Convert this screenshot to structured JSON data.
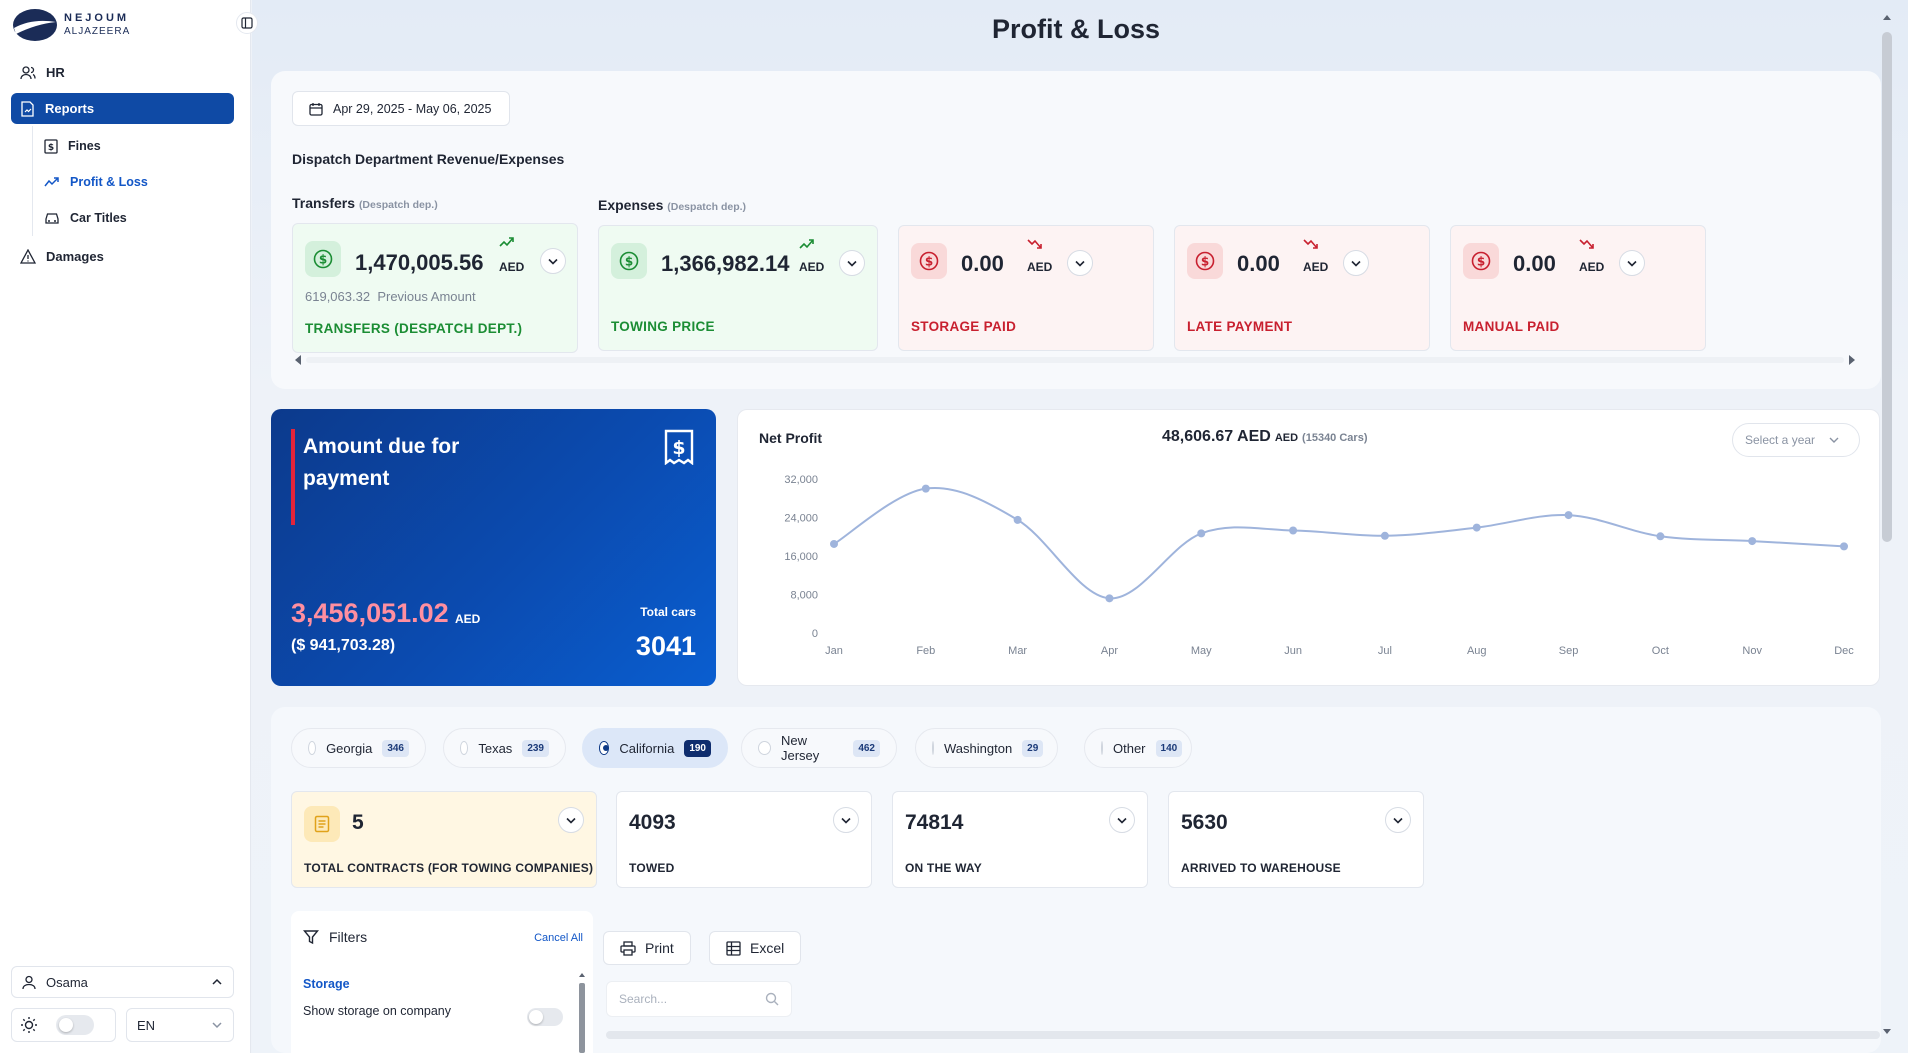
{
  "sidebar": {
    "logo_line1": "NEJOUM",
    "logo_line2": "ALJAZEERA",
    "nav": {
      "hr": "HR",
      "reports": "Reports",
      "fines": "Fines",
      "profit_loss": "Profit & Loss",
      "car_titles": "Car Titles",
      "damages": "Damages"
    },
    "user": "Osama",
    "lang": "EN"
  },
  "header": {
    "title": "Profit & Loss"
  },
  "revenue": {
    "date_range": "Apr 29, 2025 - May 06, 2025",
    "section_title": "Dispatch Department Revenue/Expenses",
    "transfers_group": "Transfers",
    "expenses_group": "Expenses",
    "group_note": "(Despatch dep.)",
    "cards": [
      {
        "value": "1,470,005.56",
        "currency": "AED",
        "label": "TRANSFERS (DESPATCH DEPT.)",
        "prev_value": "619,063.32",
        "prev_label": "Previous Amount"
      },
      {
        "value": "1,366,982.14",
        "currency": "AED",
        "label": "TOWING PRICE"
      },
      {
        "value": "0.00",
        "currency": "AED",
        "label": "STORAGE PAID"
      },
      {
        "value": "0.00",
        "currency": "AED",
        "label": "LATE PAYMENT"
      },
      {
        "value": "0.00",
        "currency": "AED",
        "label": "MANUAL PAID"
      }
    ]
  },
  "due": {
    "title": "Amount due for payment",
    "amount": "3,456,051.02",
    "currency": "AED",
    "usd": "($ 941,703.28)",
    "total_cars_label": "Total cars",
    "total_cars": "3041"
  },
  "net_profit": {
    "title": "Net Profit",
    "value": "48,606.67 AED",
    "currency": "AED",
    "cars": "(15340 Cars)",
    "year_placeholder": "Select a year"
  },
  "chart_data": {
    "type": "line",
    "categories": [
      "Jan",
      "Feb",
      "Mar",
      "Apr",
      "May",
      "Jun",
      "Jul",
      "Aug",
      "Sep",
      "Oct",
      "Nov",
      "Dec"
    ],
    "yticks": [
      "0",
      "8,000",
      "16,000",
      "24,000",
      "32,000"
    ],
    "ylim": [
      0,
      32000
    ],
    "series": [
      {
        "values": [
          18500,
          30000,
          23500,
          7200,
          20700,
          21300,
          20200,
          21900,
          24500,
          20100,
          19100,
          18000
        ]
      }
    ],
    "line_color": "#9fb4dc"
  },
  "states": [
    {
      "name": "Georgia",
      "count": "346"
    },
    {
      "name": "Texas",
      "count": "239"
    },
    {
      "name": "California",
      "count": "190"
    },
    {
      "name": "New Jersey",
      "count": "462"
    },
    {
      "name": "Washington",
      "count": "29"
    },
    {
      "name": "Other",
      "count": "140"
    }
  ],
  "kpis": [
    {
      "value": "5",
      "label": "TOTAL CONTRACTS (FOR TOWING COMPANIES)"
    },
    {
      "value": "4093",
      "label": "TOWED"
    },
    {
      "value": "74814",
      "label": "ON THE WAY"
    },
    {
      "value": "5630",
      "label": "ARRIVED TO WAREHOUSE"
    }
  ],
  "filters": {
    "title": "Filters",
    "cancel": "Cancel All",
    "storage": "Storage",
    "show_storage": "Show storage on company"
  },
  "toolbar": {
    "print": "Print",
    "excel": "Excel",
    "search_placeholder": "Search..."
  }
}
